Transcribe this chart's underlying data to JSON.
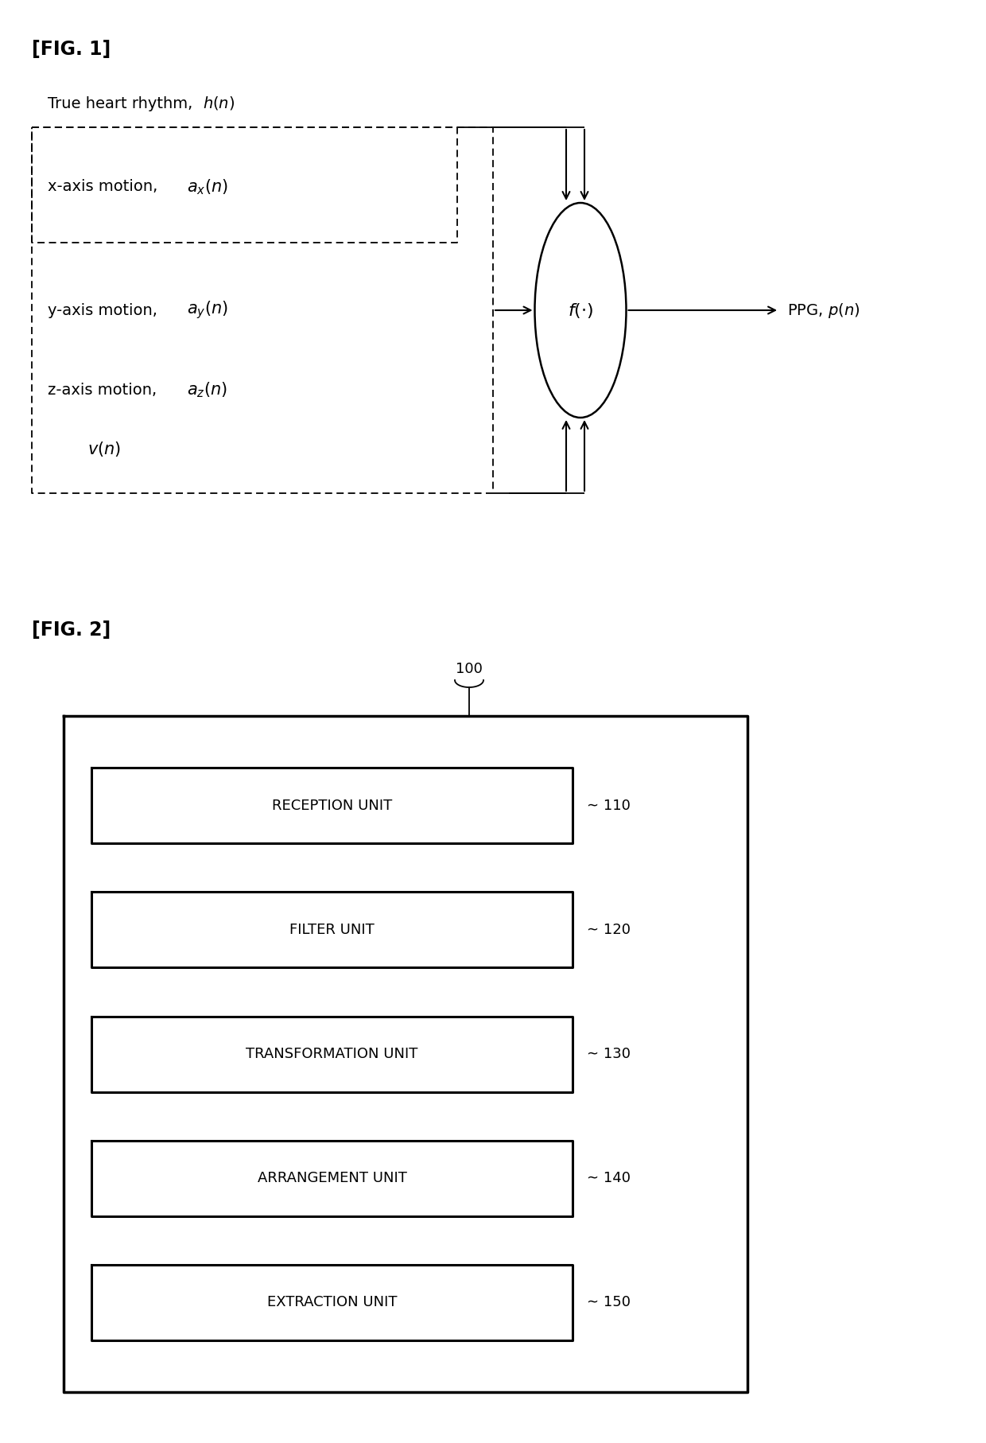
{
  "fig1_title": "[FIG. 1]",
  "fig2_title": "[FIG. 2]",
  "bg_color": "#ffffff",
  "fontsize_title": 17,
  "fontsize_label": 14,
  "fontsize_math": 14,
  "fontsize_unit": 13,
  "fontsize_ref": 13,
  "fig2_units": [
    {
      "label": "RECEPTION UNIT",
      "ref": "110"
    },
    {
      "label": "FILTER UNIT",
      "ref": "120"
    },
    {
      "label": "TRANSFORMATION UNIT",
      "ref": "130"
    },
    {
      "label": "ARRANGEMENT UNIT",
      "ref": "140"
    },
    {
      "label": "EXTRACTION UNIT",
      "ref": "150"
    }
  ]
}
